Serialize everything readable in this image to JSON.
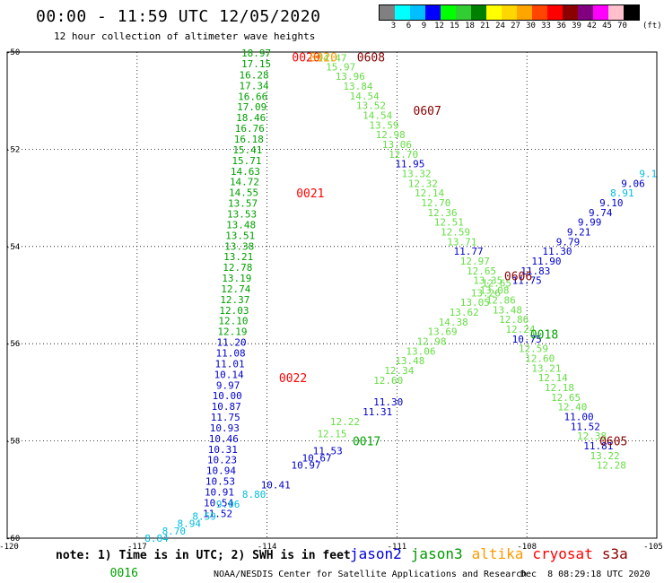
{
  "header": {
    "title": "00:00 - 11:59 UTC 12/05/2020",
    "subtitle": "12 hour collection of altimeter wave heights"
  },
  "colorbar": {
    "labels": [
      "3",
      "6",
      "9",
      "12",
      "15",
      "18",
      "21",
      "24",
      "27",
      "30",
      "33",
      "36",
      "39",
      "42",
      "45",
      "70"
    ],
    "colors": [
      "#808080",
      "#00ffff",
      "#00bfff",
      "#0000ff",
      "#00ff00",
      "#32cd32",
      "#008000",
      "#ffff00",
      "#ffd700",
      "#ffa500",
      "#ff4500",
      "#ff0000",
      "#8b0000",
      "#800080",
      "#ff00ff",
      "#ffc0cb",
      "#000000"
    ],
    "unit": "(ft)"
  },
  "axes": {
    "x_ticks": [
      "-120",
      "-117",
      "-114",
      "-111",
      "-108",
      "-105"
    ],
    "y_ticks": [
      "-50",
      "-52",
      "-54",
      "-56",
      "-58",
      "-60"
    ]
  },
  "tracks": [
    {
      "name": "track-jason3-north",
      "color_key": "green",
      "points": [
        {
          "v": "18.97",
          "lon": -114.25,
          "lat": -50.02
        },
        {
          "v": "17.15",
          "lon": -114.25,
          "lat": -50.24
        },
        {
          "v": "16.28",
          "lon": -114.3,
          "lat": -50.47
        },
        {
          "v": "17.34",
          "lon": -114.3,
          "lat": -50.69
        },
        {
          "v": "16.66",
          "lon": -114.33,
          "lat": -50.91
        },
        {
          "v": "17.09",
          "lon": -114.35,
          "lat": -51.13
        },
        {
          "v": "18.46",
          "lon": -114.37,
          "lat": -51.35
        },
        {
          "v": "16.76",
          "lon": -114.4,
          "lat": -51.57
        },
        {
          "v": "16.18",
          "lon": -114.42,
          "lat": -51.79
        },
        {
          "v": "15.41",
          "lon": -114.45,
          "lat": -52.01
        },
        {
          "v": "15.71",
          "lon": -114.47,
          "lat": -52.23
        },
        {
          "v": "14.63",
          "lon": -114.5,
          "lat": -52.45
        },
        {
          "v": "14.72",
          "lon": -114.52,
          "lat": -52.67
        },
        {
          "v": "14.55",
          "lon": -114.54,
          "lat": -52.89
        },
        {
          "v": "13.57",
          "lon": -114.56,
          "lat": -53.11
        },
        {
          "v": "13.53",
          "lon": -114.58,
          "lat": -53.33
        },
        {
          "v": "13.48",
          "lon": -114.6,
          "lat": -53.55
        },
        {
          "v": "13.51",
          "lon": -114.62,
          "lat": -53.77
        },
        {
          "v": "13.38",
          "lon": -114.64,
          "lat": -53.99
        },
        {
          "v": "13.21",
          "lon": -114.66,
          "lat": -54.21
        },
        {
          "v": "12.78",
          "lon": -114.68,
          "lat": -54.43
        },
        {
          "v": "13.19",
          "lon": -114.7,
          "lat": -54.65
        },
        {
          "v": "12.74",
          "lon": -114.72,
          "lat": -54.87
        },
        {
          "v": "12.37",
          "lon": -114.74,
          "lat": -55.09
        },
        {
          "v": "12.03",
          "lon": -114.76,
          "lat": -55.31
        },
        {
          "v": "12.10",
          "lon": -114.78,
          "lat": -55.53
        },
        {
          "v": "12.19",
          "lon": -114.8,
          "lat": -55.75
        }
      ]
    },
    {
      "name": "track-jason2-north",
      "color_key": "blue",
      "points": [
        {
          "v": "11.20",
          "lon": -114.82,
          "lat": -55.97
        },
        {
          "v": "11.08",
          "lon": -114.84,
          "lat": -56.19
        },
        {
          "v": "11.01",
          "lon": -114.86,
          "lat": -56.41
        },
        {
          "v": "10.14",
          "lon": -114.88,
          "lat": -56.63
        },
        {
          "v": "9.97",
          "lon": -114.9,
          "lat": -56.85
        },
        {
          "v": "10.00",
          "lon": -114.92,
          "lat": -57.07
        },
        {
          "v": "10.87",
          "lon": -114.94,
          "lat": -57.29
        },
        {
          "v": "11.75",
          "lon": -114.96,
          "lat": -57.51
        },
        {
          "v": "10.93",
          "lon": -114.98,
          "lat": -57.73
        },
        {
          "v": "10.46",
          "lon": -115.0,
          "lat": -57.95
        },
        {
          "v": "10.31",
          "lon": -115.02,
          "lat": -58.17
        },
        {
          "v": "10.23",
          "lon": -115.04,
          "lat": -58.39
        },
        {
          "v": "10.94",
          "lon": -115.06,
          "lat": -58.61
        },
        {
          "v": "10.53",
          "lon": -115.08,
          "lat": -58.83
        },
        {
          "v": "10.91",
          "lon": -115.1,
          "lat": -59.05
        },
        {
          "v": "10.54",
          "lon": -115.12,
          "lat": -59.27
        },
        {
          "v": "11.52",
          "lon": -115.14,
          "lat": -59.49
        }
      ]
    },
    {
      "name": "track-light-green-south",
      "color_key": "lightgreen",
      "points": [
        {
          "v": "14.47",
          "lon": -112.5,
          "lat": -50.12
        },
        {
          "v": "15.97",
          "lon": -112.3,
          "lat": -50.3
        },
        {
          "v": "13.96",
          "lon": -112.08,
          "lat": -50.5
        },
        {
          "v": "13.84",
          "lon": -111.9,
          "lat": -50.7
        },
        {
          "v": "14.54",
          "lon": -111.75,
          "lat": -50.9
        },
        {
          "v": "13.52",
          "lon": -111.6,
          "lat": -51.1
        },
        {
          "v": "14.54",
          "lon": -111.45,
          "lat": -51.3
        },
        {
          "v": "13.59",
          "lon": -111.3,
          "lat": -51.5
        },
        {
          "v": "12.98",
          "lon": -111.15,
          "lat": -51.7
        },
        {
          "v": "13.06",
          "lon": -111.0,
          "lat": -51.9
        },
        {
          "v": "12.70",
          "lon": -110.85,
          "lat": -52.1
        },
        {
          "v": "13.32",
          "lon": -110.55,
          "lat": -52.5
        },
        {
          "v": "12.32",
          "lon": -110.4,
          "lat": -52.7
        },
        {
          "v": "12.14",
          "lon": -110.25,
          "lat": -52.9
        },
        {
          "v": "12.70",
          "lon": -110.1,
          "lat": -53.1
        },
        {
          "v": "12.36",
          "lon": -109.95,
          "lat": -53.3
        },
        {
          "v": "12.51",
          "lon": -109.8,
          "lat": -53.5
        },
        {
          "v": "12.59",
          "lon": -109.65,
          "lat": -53.7
        },
        {
          "v": "13.71",
          "lon": -109.5,
          "lat": -53.9
        },
        {
          "v": "12.97",
          "lon": -109.2,
          "lat": -54.3
        },
        {
          "v": "12.65",
          "lon": -109.05,
          "lat": -54.5
        },
        {
          "v": "13.35",
          "lon": -108.9,
          "lat": -54.7
        },
        {
          "v": "13.08",
          "lon": -108.75,
          "lat": -54.9
        },
        {
          "v": "12.86",
          "lon": -108.6,
          "lat": -55.1
        },
        {
          "v": "13.48",
          "lon": -108.45,
          "lat": -55.3
        },
        {
          "v": "12.86",
          "lon": -108.3,
          "lat": -55.5
        },
        {
          "v": "12.24",
          "lon": -108.15,
          "lat": -55.7
        },
        {
          "v": "12.59",
          "lon": -107.85,
          "lat": -56.1
        },
        {
          "v": "12.60",
          "lon": -107.7,
          "lat": -56.3
        },
        {
          "v": "13.21",
          "lon": -107.55,
          "lat": -56.5
        },
        {
          "v": "12.14",
          "lon": -107.4,
          "lat": -56.7
        },
        {
          "v": "12.18",
          "lon": -107.25,
          "lat": -56.9
        },
        {
          "v": "12.65",
          "lon": -107.1,
          "lat": -57.1
        },
        {
          "v": "12.40",
          "lon": -106.95,
          "lat": -57.3
        },
        {
          "v": "12.38",
          "lon": -106.5,
          "lat": -57.9
        },
        {
          "v": "13.22",
          "lon": -106.2,
          "lat": -58.3
        },
        {
          "v": "12.28",
          "lon": -106.05,
          "lat": -58.5
        }
      ]
    },
    {
      "name": "track-blue-south",
      "color_key": "blue",
      "points": [
        {
          "v": "11.95",
          "lon": -110.7,
          "lat": -52.3
        },
        {
          "v": "11.77",
          "lon": -109.35,
          "lat": -54.1
        },
        {
          "v": "10.75",
          "lon": -108.0,
          "lat": -55.9
        },
        {
          "v": "11.00",
          "lon": -106.8,
          "lat": -57.5
        },
        {
          "v": "11.52",
          "lon": -106.65,
          "lat": -57.7
        },
        {
          "v": "11.81",
          "lon": -106.35,
          "lat": -58.1
        }
      ]
    },
    {
      "name": "track-diagonal-lightgreen",
      "color_key": "lightgreen",
      "points": [
        {
          "v": "12.15",
          "lon": -112.5,
          "lat": -57.85
        },
        {
          "v": "12.22",
          "lon": -112.2,
          "lat": -57.6
        },
        {
          "v": "12.60",
          "lon": -111.2,
          "lat": -56.75
        },
        {
          "v": "12.34",
          "lon": -110.95,
          "lat": -56.55
        },
        {
          "v": "13.48",
          "lon": -110.7,
          "lat": -56.35
        },
        {
          "v": "13.06",
          "lon": -110.45,
          "lat": -56.15
        },
        {
          "v": "12.98",
          "lon": -110.2,
          "lat": -55.95
        },
        {
          "v": "13.69",
          "lon": -109.95,
          "lat": -55.75
        },
        {
          "v": "14.38",
          "lon": -109.7,
          "lat": -55.55
        },
        {
          "v": "13.62",
          "lon": -109.45,
          "lat": -55.35
        },
        {
          "v": "13.05",
          "lon": -109.2,
          "lat": -55.15
        },
        {
          "v": "13.26",
          "lon": -108.95,
          "lat": -54.95
        },
        {
          "v": "12.65",
          "lon": -108.7,
          "lat": -54.75
        }
      ]
    },
    {
      "name": "track-diagonal-blue",
      "color_key": "blue",
      "points": [
        {
          "v": "11.30",
          "lon": -111.2,
          "lat": -57.2
        },
        {
          "v": "11.31",
          "lon": -111.45,
          "lat": -57.4
        },
        {
          "v": "11.53",
          "lon": -112.6,
          "lat": -58.2
        },
        {
          "v": "10.67",
          "lon": -112.85,
          "lat": -58.35
        },
        {
          "v": "10.97",
          "lon": -113.1,
          "lat": -58.5
        },
        {
          "v": "10.41",
          "lon": -113.8,
          "lat": -58.9
        },
        {
          "v": "11.75",
          "lon": -108.0,
          "lat": -54.7
        },
        {
          "v": "11.83",
          "lon": -107.8,
          "lat": -54.5
        },
        {
          "v": "11.90",
          "lon": -107.55,
          "lat": -54.3
        },
        {
          "v": "11.30",
          "lon": -107.3,
          "lat": -54.1
        },
        {
          "v": "9.79",
          "lon": -107.05,
          "lat": -53.9
        },
        {
          "v": "9.21",
          "lon": -106.8,
          "lat": -53.7
        },
        {
          "v": "9.99",
          "lon": -106.55,
          "lat": -53.5
        },
        {
          "v": "9.74",
          "lon": -106.3,
          "lat": -53.3
        },
        {
          "v": "9.10",
          "lon": -106.05,
          "lat": -53.1
        },
        {
          "v": "9.06",
          "lon": -105.55,
          "lat": -52.7
        }
      ]
    },
    {
      "name": "track-diagonal-cyan",
      "color_key": "cyan",
      "points": [
        {
          "v": "8.80",
          "lon": -114.3,
          "lat": -59.1
        },
        {
          "v": "9.06",
          "lon": -114.9,
          "lat": -59.3
        },
        {
          "v": "8.59",
          "lon": -115.45,
          "lat": -59.55
        },
        {
          "v": "8.94",
          "lon": -115.8,
          "lat": -59.7
        },
        {
          "v": "8.70",
          "lon": -116.15,
          "lat": -59.85
        },
        {
          "v": "8.84",
          "lon": -116.55,
          "lat": -60.0
        },
        {
          "v": "8.79",
          "lon": -116.85,
          "lat": -60.15
        },
        {
          "v": "8.86",
          "lon": -117.15,
          "lat": -60.28
        },
        {
          "v": "8.86",
          "lon": -117.45,
          "lat": -60.4
        },
        {
          "v": "8.91",
          "lon": -105.8,
          "lat": -52.9
        },
        {
          "v": "9.1",
          "lon": -105.2,
          "lat": -52.5
        }
      ]
    }
  ],
  "time_labels": [
    {
      "v": "0020",
      "lon": -113.1,
      "lat": -50.1,
      "color_key": "red"
    },
    {
      "v": "0020",
      "lon": -112.7,
      "lat": -50.1,
      "color_key": "orange"
    },
    {
      "v": "0608",
      "lon": -111.6,
      "lat": -50.1,
      "color_key": "darkred"
    },
    {
      "v": "0607",
      "lon": -110.3,
      "lat": -51.2,
      "color_key": "darkred"
    },
    {
      "v": "0021",
      "lon": -113.0,
      "lat": -52.9,
      "color_key": "red"
    },
    {
      "v": "0606",
      "lon": -108.2,
      "lat": -54.6,
      "color_key": "darkred"
    },
    {
      "v": "0018",
      "lon": -107.6,
      "lat": -55.8,
      "color_key": "green"
    },
    {
      "v": "0022",
      "lon": -113.4,
      "lat": -56.7,
      "color_key": "red"
    },
    {
      "v": "0017",
      "lon": -111.7,
      "lat": -58.0,
      "color_key": "green"
    },
    {
      "v": "0605",
      "lon": -106.0,
      "lat": -58.0,
      "color_key": "darkred"
    },
    {
      "v": "0016",
      "lon": -117.3,
      "lat": -60.7,
      "color_key": "green"
    }
  ],
  "palette": {
    "green": "#00a000",
    "lightgreen": "#66dd44",
    "blue": "#0000cc",
    "cyan": "#00bbdd",
    "red": "#ff0000",
    "orange": "#ff9900",
    "darkred": "#880000"
  },
  "note": "note: 1) Time is in UTC; 2) SWH is in feet",
  "legend": [
    {
      "label": "jason2",
      "color": "#0000dd"
    },
    {
      "label": "jason3",
      "color": "#009900"
    },
    {
      "label": "altika",
      "color": "#ff9900"
    },
    {
      "label": "cryosat",
      "color": "#ff0000"
    },
    {
      "label": "s3a",
      "color": "#880000"
    }
  ],
  "footer": {
    "left": "NOAA/NESDIS Center for Satellite Applications and Research",
    "right": "Dec  8 08:29:18 UTC 2020"
  }
}
